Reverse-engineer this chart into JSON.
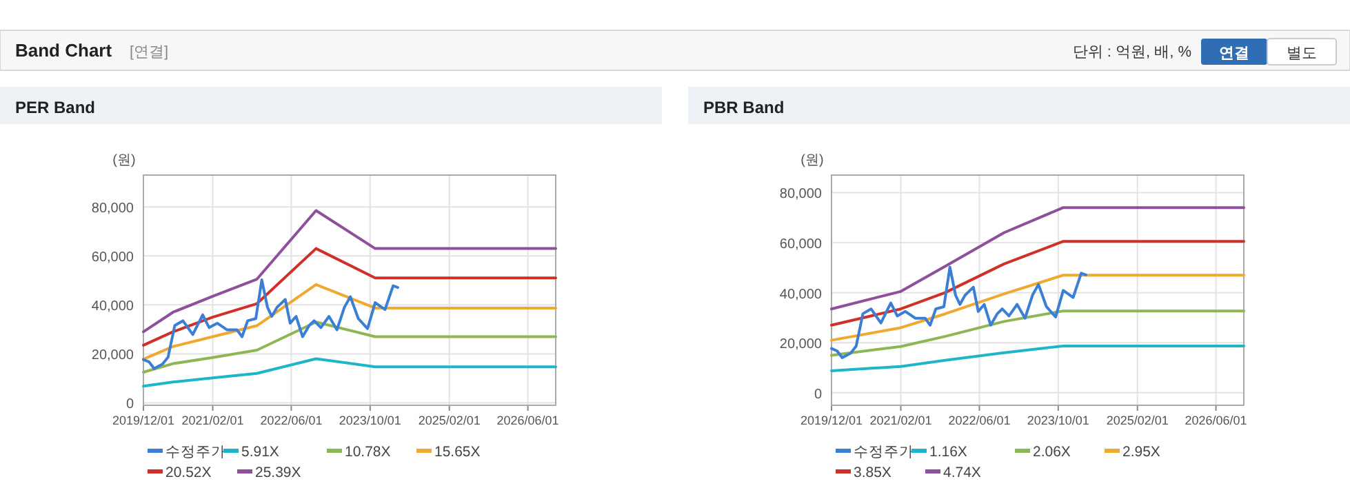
{
  "chart_data": [
    {
      "type": "other",
      "title": "Band Chart",
      "subtitle": "[연결]",
      "annotations": [
        "단위 : 억원, 배, %",
        "연결",
        "별도"
      ]
    },
    {
      "type": "line",
      "title": "PER Band",
      "ylabel": "(원)",
      "xlim": [
        "2019-12-01",
        "2026-11-20"
      ],
      "ylim": [
        -1000,
        93000
      ],
      "xticks": [
        {
          "value": "2019-12-01",
          "label": "2019/12/01"
        },
        {
          "value": "2021-02-01",
          "label": "2021/02/01"
        },
        {
          "value": "2022-06-01",
          "label": "2022/06/01"
        },
        {
          "value": "2023-10-01",
          "label": "2023/10/01"
        },
        {
          "value": "2025-02-01",
          "label": "2025/02/01"
        },
        {
          "value": "2026-06-01",
          "label": "2026/06/01"
        }
      ],
      "yticks": [
        0,
        {
          "value": 20000,
          "label": "20,000"
        },
        {
          "value": 40000,
          "label": "40,000"
        },
        {
          "value": 60000,
          "label": "60,000"
        },
        {
          "value": 80000,
          "label": "80,000"
        }
      ],
      "grid": true,
      "legend": "bottom",
      "marker": "none",
      "line_style": "solid",
      "series": [
        {
          "name": "수정주가",
          "color": "#3a7fd5",
          "x": [
            "2019-12-01",
            "2020-01-05",
            "2020-02-05",
            "2020-03-28",
            "2020-05-01",
            "2020-06-12",
            "2020-08-01",
            "2020-10-01",
            "2020-12-01",
            "2021-01-10",
            "2021-03-01",
            "2021-05-01",
            "2021-07-01",
            "2021-08-01",
            "2021-09-05",
            "2021-10-25",
            "2021-12-01",
            "2022-01-05",
            "2022-02-01",
            "2022-03-05",
            "2022-04-25",
            "2022-05-25",
            "2022-07-01",
            "2022-08-10",
            "2022-09-20",
            "2022-10-20",
            "2022-12-01",
            "2023-01-20",
            "2023-03-10",
            "2023-04-25",
            "2023-06-01",
            "2023-07-20",
            "2023-09-15",
            "2023-11-01",
            "2024-01-01",
            "2024-02-20",
            "2024-03-20"
          ],
          "values": [
            17700,
            16700,
            14000,
            15800,
            18600,
            31600,
            33500,
            27900,
            35900,
            30700,
            32500,
            29800,
            29800,
            27000,
            33500,
            34400,
            50200,
            39000,
            35300,
            39000,
            42200,
            32500,
            35300,
            27000,
            31600,
            33500,
            30700,
            35300,
            29800,
            39000,
            43300,
            34400,
            30300,
            40900,
            38100,
            47800,
            47100
          ]
        },
        {
          "name": "5.91X",
          "color": "#1fb5c8",
          "x": [
            "2019-12-01",
            "2020-06-01",
            "2021-02-01",
            "2021-11-01",
            "2022-11-01",
            "2023-11-01",
            "2026-11-20"
          ],
          "values": [
            6800,
            8500,
            10200,
            12000,
            18000,
            14700,
            14700
          ]
        },
        {
          "name": "10.78X",
          "color": "#8db654",
          "x": [
            "2019-12-01",
            "2020-06-01",
            "2021-02-01",
            "2021-11-01",
            "2022-11-01",
            "2023-11-01",
            "2026-11-20"
          ],
          "values": [
            12500,
            16000,
            18500,
            21500,
            33000,
            27000,
            27000
          ]
        },
        {
          "name": "15.65X",
          "color": "#f0a830",
          "x": [
            "2019-12-01",
            "2020-06-01",
            "2021-02-01",
            "2021-11-01",
            "2022-11-01",
            "2023-11-01",
            "2026-11-20"
          ],
          "values": [
            17800,
            23000,
            27000,
            31500,
            48300,
            38700,
            38700
          ]
        },
        {
          "name": "20.52X",
          "color": "#cf3129",
          "x": [
            "2019-12-01",
            "2020-06-01",
            "2021-02-01",
            "2021-11-01",
            "2022-11-01",
            "2023-11-01",
            "2026-11-20"
          ],
          "values": [
            23500,
            29000,
            35000,
            40500,
            63000,
            51000,
            51000
          ]
        },
        {
          "name": "25.39X",
          "color": "#8e4f9b",
          "x": [
            "2019-12-01",
            "2020-06-01",
            "2021-02-01",
            "2021-11-01",
            "2022-11-01",
            "2023-11-01",
            "2026-11-20"
          ],
          "values": [
            29000,
            37000,
            43500,
            50500,
            78500,
            63000,
            63000
          ]
        }
      ]
    },
    {
      "type": "line",
      "title": "PBR Band",
      "ylabel": "(원)",
      "xlim": [
        "2019-12-01",
        "2026-11-20"
      ],
      "ylim": [
        -5000,
        87000
      ],
      "xticks": [
        {
          "value": "2019-12-01",
          "label": "2019/12/01"
        },
        {
          "value": "2021-02-01",
          "label": "2021/02/01"
        },
        {
          "value": "2022-06-01",
          "label": "2022/06/01"
        },
        {
          "value": "2023-10-01",
          "label": "2023/10/01"
        },
        {
          "value": "2025-02-01",
          "label": "2025/02/01"
        },
        {
          "value": "2026-06-01",
          "label": "2026/06/01"
        }
      ],
      "yticks": [
        0,
        {
          "value": 20000,
          "label": "20,000"
        },
        {
          "value": 40000,
          "label": "40,000"
        },
        {
          "value": 60000,
          "label": "60,000"
        },
        {
          "value": 80000,
          "label": "80,000"
        }
      ],
      "grid": true,
      "legend": "bottom",
      "marker": "none",
      "line_style": "solid",
      "series": [
        {
          "name": "수정주가",
          "color": "#3a7fd5",
          "x": [
            "2019-12-01",
            "2020-01-05",
            "2020-02-05",
            "2020-03-28",
            "2020-05-01",
            "2020-06-12",
            "2020-08-01",
            "2020-10-01",
            "2020-12-01",
            "2021-01-10",
            "2021-03-01",
            "2021-05-01",
            "2021-07-01",
            "2021-08-01",
            "2021-09-05",
            "2021-10-25",
            "2021-12-01",
            "2022-01-05",
            "2022-02-01",
            "2022-03-05",
            "2022-04-25",
            "2022-05-25",
            "2022-07-01",
            "2022-08-10",
            "2022-09-20",
            "2022-10-20",
            "2022-12-01",
            "2023-01-20",
            "2023-03-10",
            "2023-04-25",
            "2023-06-01",
            "2023-07-20",
            "2023-09-15",
            "2023-11-01",
            "2024-01-01",
            "2024-02-20",
            "2024-03-20"
          ],
          "values": [
            17700,
            16700,
            14000,
            15800,
            18600,
            31600,
            33500,
            27900,
            35900,
            30700,
            32500,
            29800,
            29800,
            27000,
            33500,
            34400,
            50200,
            39000,
            35300,
            39000,
            42200,
            32500,
            35300,
            27000,
            31600,
            33500,
            30700,
            35300,
            29800,
            39000,
            43300,
            34400,
            30300,
            40900,
            38100,
            47800,
            47100
          ]
        },
        {
          "name": "1.16X",
          "color": "#1fb5c8",
          "x": [
            "2019-12-01",
            "2021-02-01",
            "2021-11-01",
            "2022-11-01",
            "2023-11-01",
            "2026-11-20"
          ],
          "values": [
            8800,
            10500,
            13000,
            16000,
            18700,
            18700
          ]
        },
        {
          "name": "2.06X",
          "color": "#8db654",
          "x": [
            "2019-12-01",
            "2021-02-01",
            "2021-11-01",
            "2022-11-01",
            "2023-11-01",
            "2026-11-20"
          ],
          "values": [
            15000,
            18500,
            22500,
            28500,
            32700,
            32700
          ]
        },
        {
          "name": "2.95X",
          "color": "#f0a830",
          "x": [
            "2019-12-01",
            "2021-02-01",
            "2021-11-01",
            "2022-11-01",
            "2023-11-01",
            "2026-11-20"
          ],
          "values": [
            21000,
            26000,
            31500,
            39500,
            47000,
            47000
          ]
        },
        {
          "name": "3.85X",
          "color": "#cf3129",
          "x": [
            "2019-12-01",
            "2021-02-01",
            "2021-11-01",
            "2022-11-01",
            "2023-11-01",
            "2026-11-20"
          ],
          "values": [
            27000,
            33500,
            40000,
            51500,
            60500,
            60500
          ]
        },
        {
          "name": "4.74X",
          "color": "#8e4f9b",
          "x": [
            "2019-12-01",
            "2021-02-01",
            "2021-11-01",
            "2022-11-01",
            "2023-11-01",
            "2026-11-20"
          ],
          "values": [
            33500,
            40500,
            50500,
            64000,
            74000,
            74000
          ]
        }
      ]
    }
  ]
}
